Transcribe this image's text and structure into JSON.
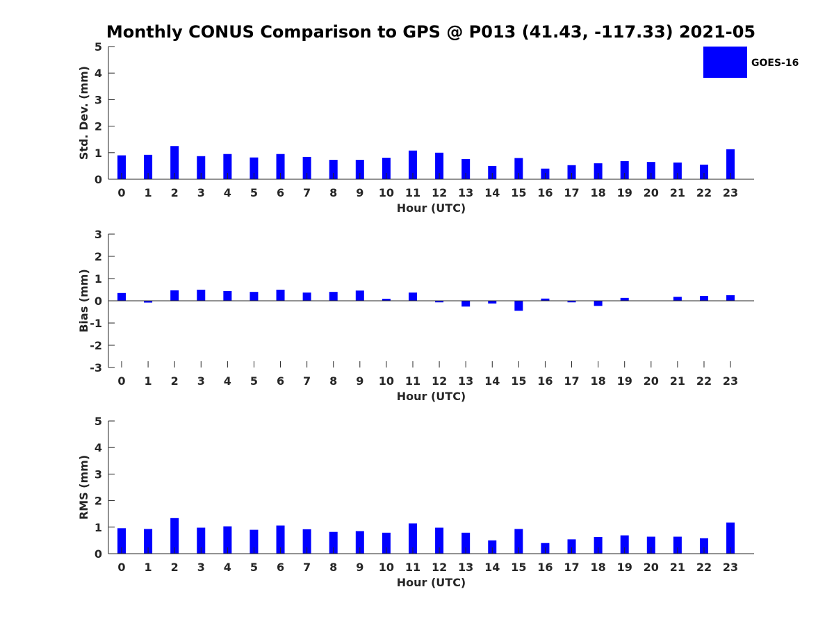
{
  "title": "Monthly CONUS Comparison to GPS @ P013 (41.43, -117.33) 2021-05",
  "legend": {
    "label": "GOES-16",
    "color": "#0000ff",
    "placement": "top-right"
  },
  "chart_data": [
    {
      "type": "bar",
      "title": "",
      "xlabel": "Hour (UTC)",
      "ylabel": "Std. Dev. (mm)",
      "ylim": [
        0,
        5
      ],
      "yticks": [
        0,
        1,
        2,
        3,
        4,
        5
      ],
      "categories": [
        "0",
        "1",
        "2",
        "3",
        "4",
        "5",
        "6",
        "7",
        "8",
        "9",
        "10",
        "11",
        "12",
        "13",
        "14",
        "15",
        "16",
        "17",
        "18",
        "19",
        "20",
        "21",
        "22",
        "23"
      ],
      "series": [
        {
          "name": "GOES-16",
          "values": [
            0.9,
            0.92,
            1.25,
            0.87,
            0.95,
            0.82,
            0.95,
            0.84,
            0.73,
            0.73,
            0.81,
            1.08,
            1.0,
            0.76,
            0.5,
            0.8,
            0.4,
            0.53,
            0.6,
            0.68,
            0.65,
            0.63,
            0.55,
            1.13
          ]
        }
      ],
      "grid": false
    },
    {
      "type": "bar",
      "title": "",
      "xlabel": "Hour (UTC)",
      "ylabel": "Bias (mm)",
      "ylim": [
        -3,
        3
      ],
      "yticks": [
        -3,
        -2,
        -1,
        0,
        1,
        2,
        3
      ],
      "categories": [
        "0",
        "1",
        "2",
        "3",
        "4",
        "5",
        "6",
        "7",
        "8",
        "9",
        "10",
        "11",
        "12",
        "13",
        "14",
        "15",
        "16",
        "17",
        "18",
        "19",
        "20",
        "21",
        "22",
        "23"
      ],
      "series": [
        {
          "name": "GOES-16",
          "values": [
            0.35,
            -0.08,
            0.47,
            0.5,
            0.44,
            0.4,
            0.5,
            0.37,
            0.4,
            0.46,
            0.09,
            0.37,
            -0.07,
            -0.26,
            -0.12,
            -0.45,
            0.1,
            -0.07,
            -0.23,
            0.13,
            0.0,
            0.18,
            0.22,
            0.25
          ]
        }
      ],
      "grid": false
    },
    {
      "type": "bar",
      "title": "",
      "xlabel": "Hour (UTC)",
      "ylabel": "RMS (mm)",
      "ylim": [
        0,
        5
      ],
      "yticks": [
        0,
        1,
        2,
        3,
        4,
        5
      ],
      "categories": [
        "0",
        "1",
        "2",
        "3",
        "4",
        "5",
        "6",
        "7",
        "8",
        "9",
        "10",
        "11",
        "12",
        "13",
        "14",
        "15",
        "16",
        "17",
        "18",
        "19",
        "20",
        "21",
        "22",
        "23"
      ],
      "series": [
        {
          "name": "GOES-16",
          "values": [
            0.96,
            0.93,
            1.34,
            0.98,
            1.03,
            0.9,
            1.06,
            0.92,
            0.82,
            0.85,
            0.79,
            1.14,
            0.98,
            0.79,
            0.5,
            0.93,
            0.4,
            0.54,
            0.63,
            0.69,
            0.64,
            0.64,
            0.58,
            1.17
          ]
        }
      ],
      "grid": false
    }
  ]
}
